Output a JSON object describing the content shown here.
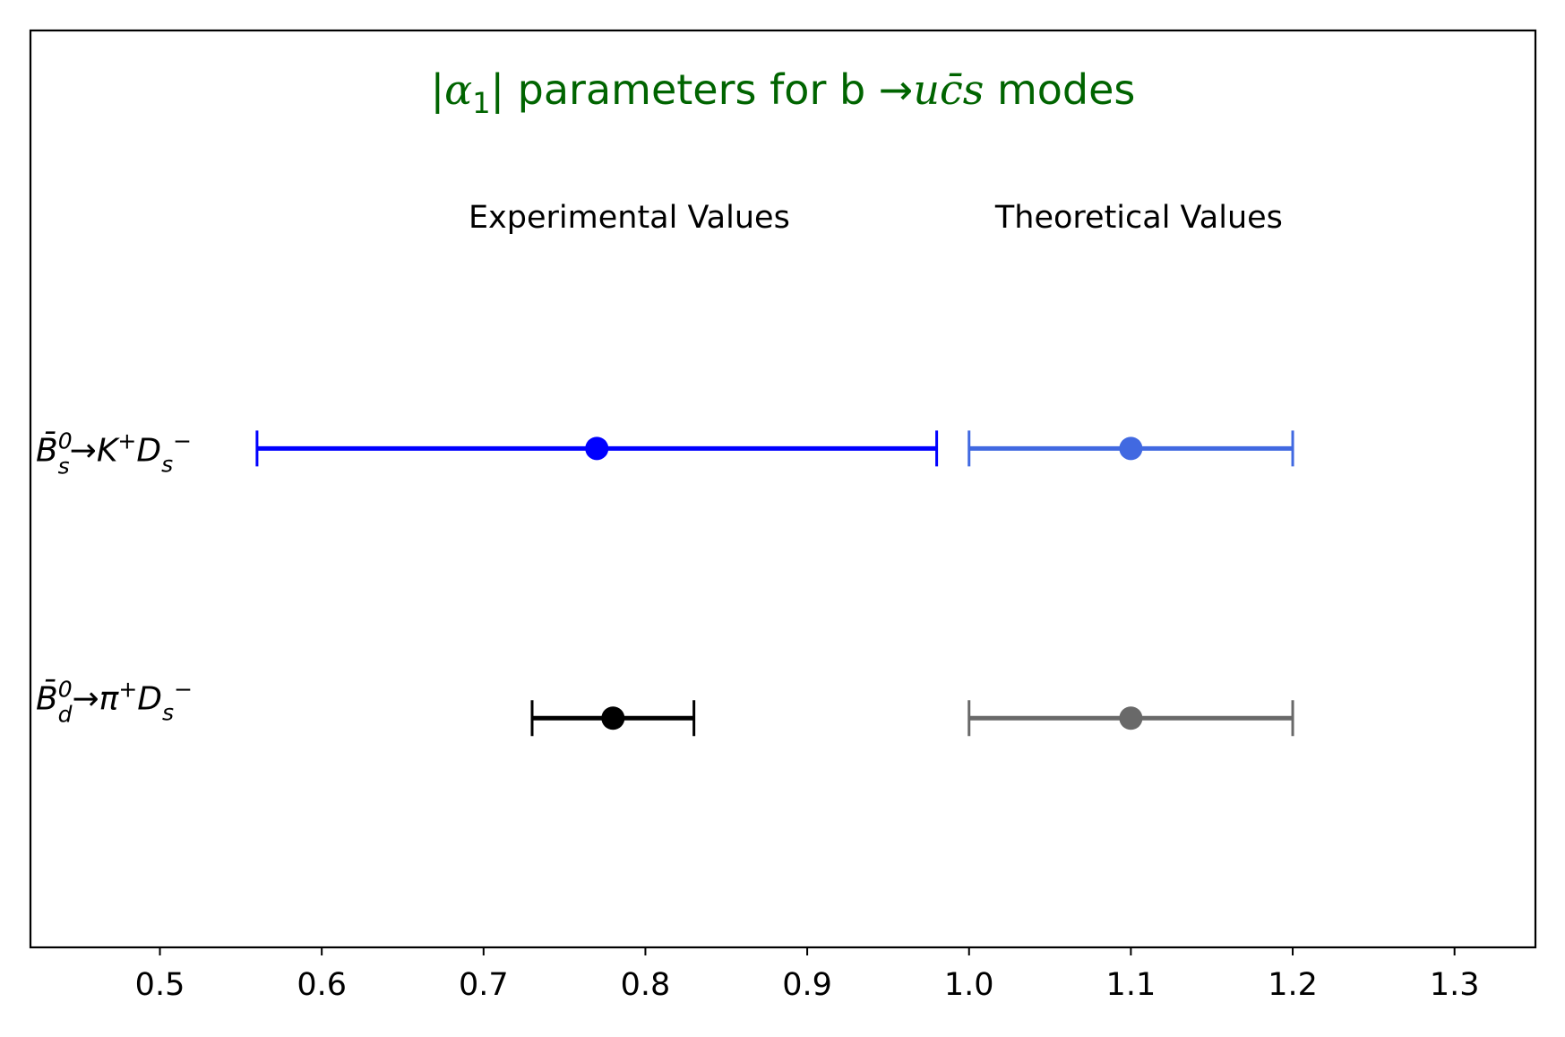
{
  "chart_data": {
    "type": "errorbar",
    "title": {
      "prefix": "|",
      "alpha": "α",
      "alpha_sub": "1",
      "mid": "| parameters for b ",
      "arrow": "→",
      "math": "uc̄s",
      "suffix": " modes"
    },
    "annotations": [
      {
        "key": "experimental",
        "text": "Experimental Values",
        "x": 0.79
      },
      {
        "key": "theoretical",
        "text": "Theoretical Values",
        "x": 1.105
      }
    ],
    "xlim": [
      0.42,
      1.35
    ],
    "ylim": [
      0,
      3.4
    ],
    "x_ticks": [
      0.5,
      0.6,
      0.7,
      0.8,
      0.9,
      1.0,
      1.1,
      1.2,
      1.3
    ],
    "x_tick_labels": [
      "0.5",
      "0.6",
      "0.7",
      "0.8",
      "0.9",
      "1.0",
      "1.1",
      "1.2",
      "1.3"
    ],
    "grid": false,
    "categories": [
      {
        "key": "bs",
        "y": 1.85,
        "label": {
          "B": "B̄",
          "sup": "0",
          "sub": "s",
          "arrow": "→",
          "p1": "K",
          "p1sup": "+",
          "p2": "D",
          "p2sub": "s",
          "p2sup": "−"
        }
      },
      {
        "key": "bd",
        "y": 0.85,
        "label": {
          "B": "B̄",
          "sup": "0",
          "sub": "d",
          "arrow": "→",
          "p1": "π",
          "p1sup": "+",
          "p2": "D",
          "p2sub": "s",
          "p2sup": "−"
        }
      }
    ],
    "series": [
      {
        "key": "bs-exp",
        "category": "bs",
        "value": 0.77,
        "low": 0.56,
        "high": 0.98,
        "color": "#0000ff"
      },
      {
        "key": "bs-th",
        "category": "bs",
        "value": 1.1,
        "low": 1.0,
        "high": 1.2,
        "color": "#4169e1"
      },
      {
        "key": "bd-exp",
        "category": "bd",
        "value": 0.78,
        "low": 0.73,
        "high": 0.83,
        "color": "#000000"
      },
      {
        "key": "bd-th",
        "category": "bd",
        "value": 1.1,
        "low": 1.0,
        "high": 1.2,
        "color": "#696969"
      }
    ]
  }
}
